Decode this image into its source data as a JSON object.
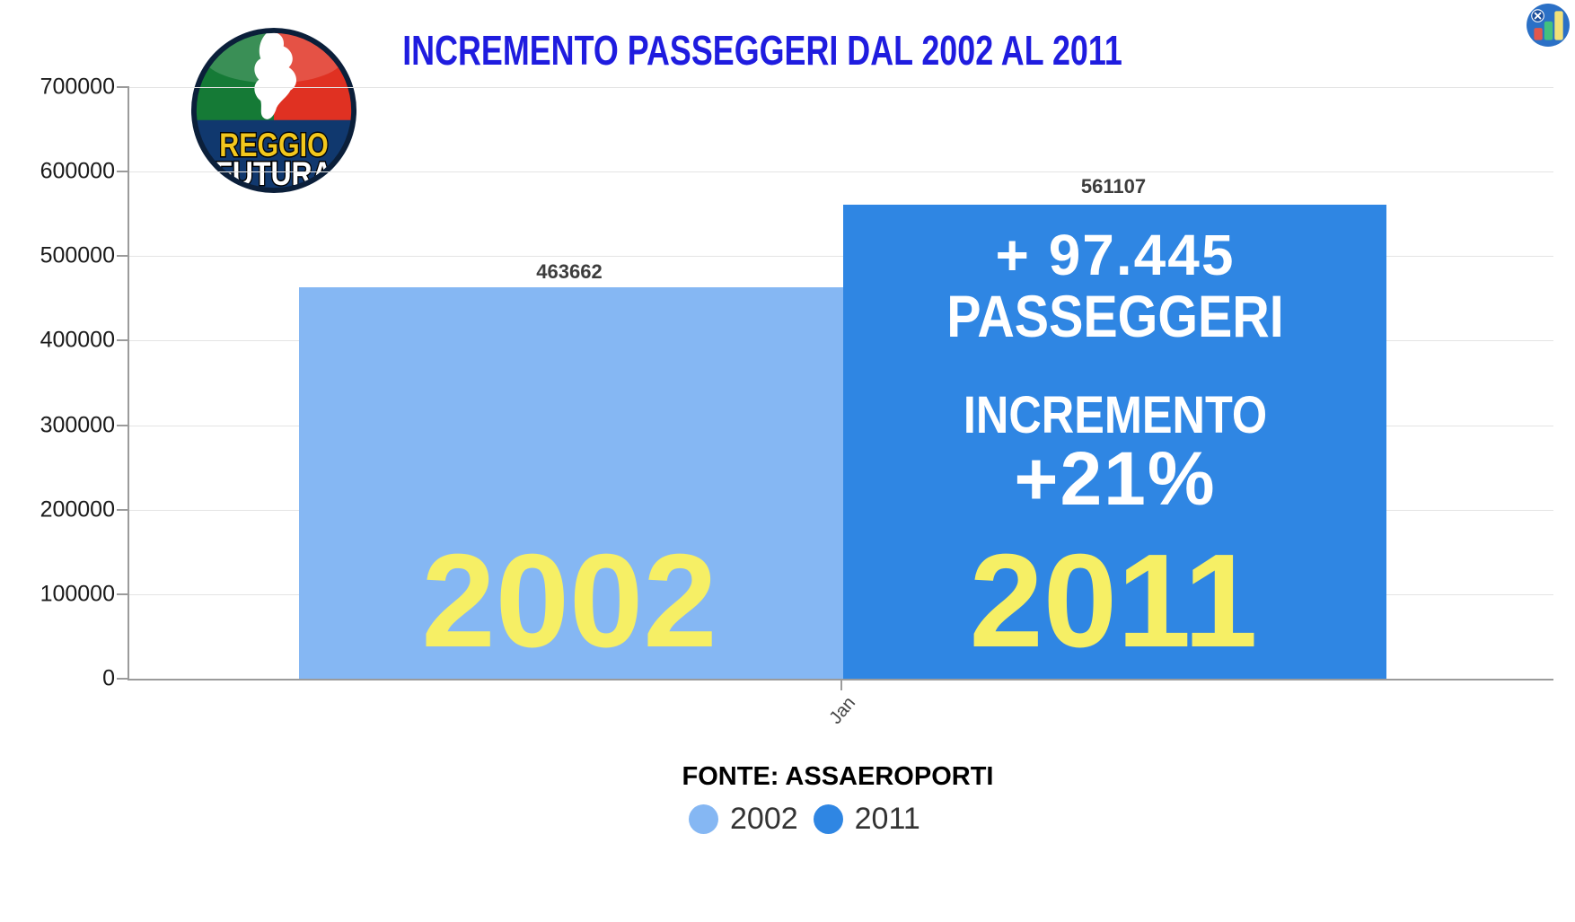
{
  "header": {
    "title": "INCREMENTO PASSEGGERI DAL 2002 AL 2011",
    "title_color": "#1f1cdf"
  },
  "logo": {
    "line1": "REGGIO",
    "line2": "FUTURA",
    "colors": {
      "green": "#157a36",
      "red": "#e03122",
      "navy": "#10386e",
      "ring": "#0b1f3a",
      "line1_color": "#f2c71d",
      "line2_color": "#ffffff"
    }
  },
  "app_icon": {
    "circle_color": "#2b70c6",
    "badge_color": "#1c4f9c",
    "bar_colors": [
      "#e2574c",
      "#43c17e",
      "#f2e178"
    ]
  },
  "chart_data": {
    "type": "bar",
    "title": "INCREMENTO PASSEGGERI DAL 2002 AL 2011",
    "categories": [
      "Jan"
    ],
    "series": [
      {
        "name": "2002",
        "values": [
          463662
        ],
        "color": "#85b7f3"
      },
      {
        "name": "2011",
        "values": [
          561107
        ],
        "color": "#2f86e3"
      }
    ],
    "ylim": [
      0,
      700000
    ],
    "y_ticks": [
      0,
      100000,
      200000,
      300000,
      400000,
      500000,
      600000,
      700000
    ],
    "grid": true,
    "legend_position": "bottom",
    "value_label_color": "#3d3d3d",
    "axis_color": "#9b9b9b",
    "gridline_color": "#e4e4e4"
  },
  "annotations": {
    "passengers_line1": "+ 97.445",
    "passengers_line2": "PASSEGGERI",
    "increment_label": "INCREMENTO",
    "increment_value": "+21%",
    "year_left": "2002",
    "year_right": "2011",
    "year_color": "#f6ef65",
    "text_color": "#ffffff"
  },
  "footer": {
    "source_label": "FONTE: ASSAEROPORTI"
  }
}
